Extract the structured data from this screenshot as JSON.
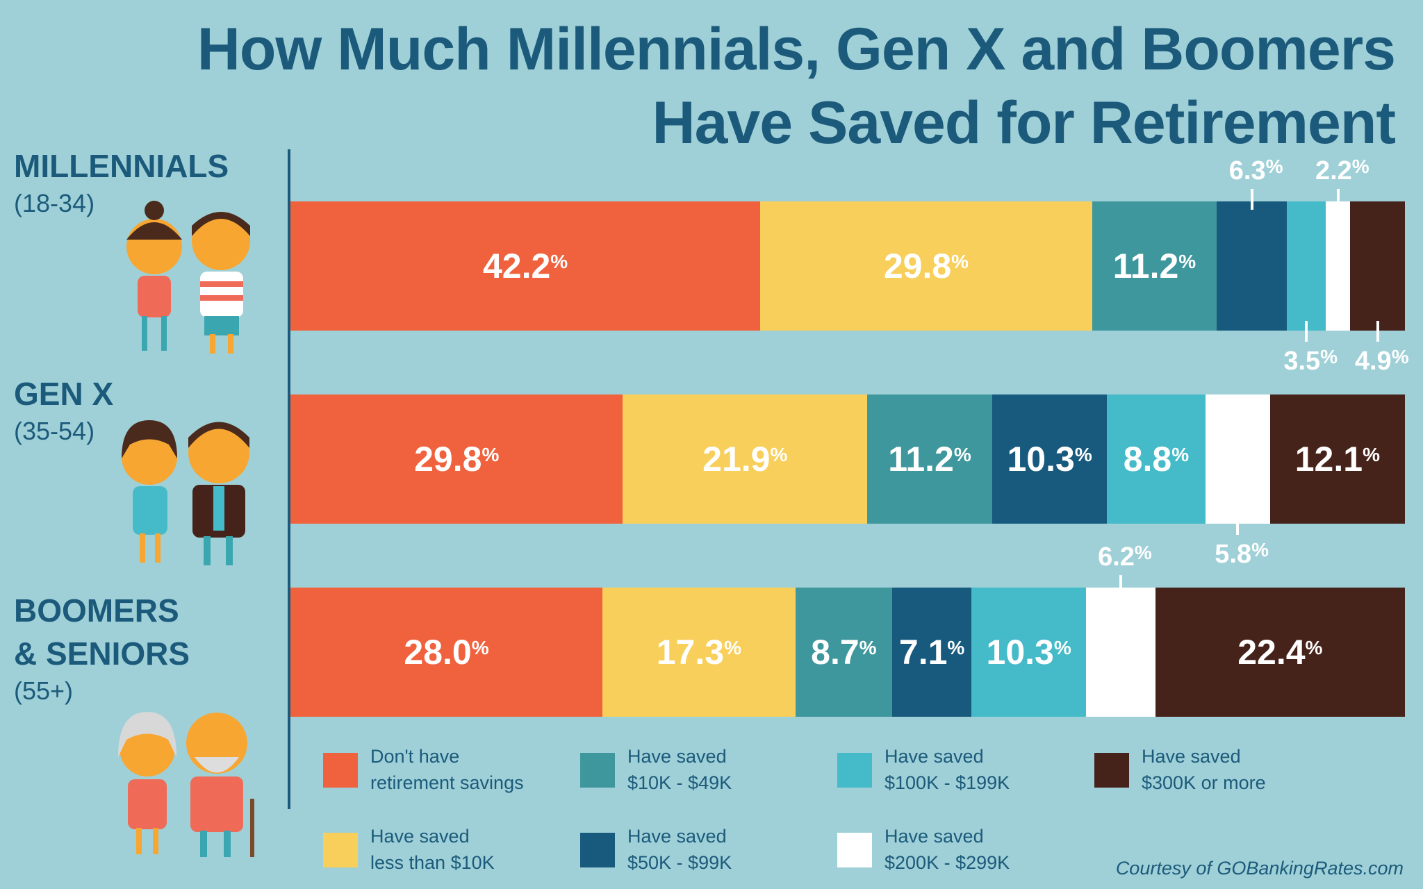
{
  "chart_data": {
    "type": "bar",
    "orientation": "horizontal",
    "stacked": true,
    "title": "How Much Millennials, Gen X and Boomers Have Saved for Retirement",
    "title_lines": [
      "How Much Millennials, Gen X and Boomers",
      "Have Saved for Retirement"
    ],
    "categories": [
      {
        "name": "MILLENNIALS",
        "age": "(18-34)"
      },
      {
        "name": "GEN X",
        "age": "(35-54)"
      },
      {
        "name_lines": [
          "BOOMERS",
          "& SENIORS"
        ],
        "age": "(55+)"
      }
    ],
    "series": [
      {
        "name": "Don't have retirement savings",
        "legend": [
          "Don't have",
          "retirement savings"
        ],
        "color": "#f0623e",
        "values": [
          42.2,
          29.8,
          28.0
        ],
        "label_pos": [
          "inside",
          "inside",
          "inside"
        ]
      },
      {
        "name": "Have saved less than $10K",
        "legend": [
          "Have saved",
          "less than $10K"
        ],
        "color": "#f8cf5b",
        "values": [
          29.8,
          21.9,
          17.3
        ],
        "label_pos": [
          "inside",
          "inside",
          "inside"
        ]
      },
      {
        "name": "Have saved $10K - $49K",
        "legend": [
          "Have saved",
          "$10K - $49K"
        ],
        "color": "#3e979c",
        "values": [
          11.2,
          11.2,
          8.7
        ],
        "label_pos": [
          "inside",
          "inside",
          "inside"
        ]
      },
      {
        "name": "Have saved $50K - $99K",
        "legend": [
          "Have saved",
          "$50K - $99K"
        ],
        "color": "#175a7e",
        "values": [
          6.3,
          10.3,
          7.1
        ],
        "label_pos": [
          "above",
          "inside",
          "inside"
        ]
      },
      {
        "name": "Have saved $100K - $199K",
        "legend": [
          "Have saved",
          "$100K - $199K"
        ],
        "color": "#45bbc9",
        "values": [
          3.5,
          8.8,
          10.3
        ],
        "label_pos": [
          "below",
          "inside",
          "inside"
        ]
      },
      {
        "name": "Have saved $200K - $299K",
        "legend": [
          "Have saved",
          "$200K - $299K"
        ],
        "color": "#ffffff",
        "values": [
          2.2,
          5.8,
          6.2
        ],
        "label_pos": [
          "above",
          "below",
          "above"
        ]
      },
      {
        "name": "Have saved $300K or more",
        "legend": [
          "Have saved",
          "$300K or more"
        ],
        "color": "#46231a",
        "values": [
          4.9,
          12.1,
          22.4
        ],
        "label_pos": [
          "below",
          "inside",
          "inside"
        ]
      }
    ],
    "unit": "%",
    "legend_placement": "bottom"
  },
  "credit": "Courtesy of GOBankingRates.com",
  "colors": {
    "background": "#a0d0d7",
    "text": "#1b5a7b"
  }
}
